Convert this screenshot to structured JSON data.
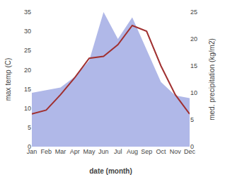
{
  "chart_data": {
    "type": "line",
    "xlabel": "date (month)",
    "ylabel": "max temp (C)",
    "y2label": "med. precipitation (kg/m2)",
    "categories": [
      "Jan",
      "Feb",
      "Mar",
      "Apr",
      "May",
      "Jun",
      "Jul",
      "Aug",
      "Sep",
      "Oct",
      "Nov",
      "Dec"
    ],
    "series": [
      {
        "type": "area",
        "color": "#b0b8e8",
        "axis": "y2",
        "values": [
          10.0,
          10.5,
          11.0,
          13.0,
          16.0,
          25.0,
          20.0,
          24.0,
          18.0,
          12.0,
          9.5,
          9.0
        ]
      },
      {
        "type": "line",
        "color": "#a03030",
        "values": [
          8.5,
          9.5,
          13.5,
          18.0,
          23.0,
          23.5,
          26.5,
          31.5,
          30.0,
          21.0,
          13.5,
          8.5
        ]
      }
    ],
    "ylim": [
      0,
      35
    ],
    "yticks": [
      0,
      5,
      10,
      15,
      20,
      25,
      30,
      35
    ],
    "y2lim": [
      0,
      25
    ],
    "y2ticks": [
      0,
      5,
      10,
      15,
      20,
      25
    ],
    "grid": false
  }
}
